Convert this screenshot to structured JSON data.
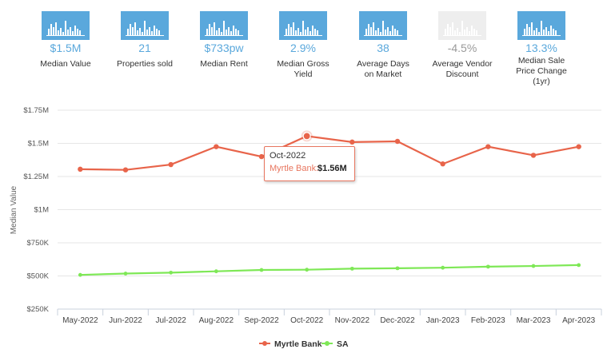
{
  "stats": [
    {
      "value": "$1.5M",
      "label": "Median Value",
      "dim": false
    },
    {
      "value": "21",
      "label": "Properties sold",
      "dim": false
    },
    {
      "value": "$733pw",
      "label": "Median Rent",
      "dim": false
    },
    {
      "value": "2.9%",
      "label": "Median Gross Yield",
      "dim": false
    },
    {
      "value": "38",
      "label": "Average Days on Market",
      "dim": false
    },
    {
      "value": "-4.5%",
      "label": "Average Vendor Discount",
      "dim": true
    },
    {
      "value": "13.3%",
      "label": "Median Sale Price Change (1yr)",
      "dim": false
    }
  ],
  "colors": {
    "accent": "#5aa8dc",
    "myrtle": "#e8644a",
    "sa": "#7ee856",
    "dim_icon": "#eeeeee",
    "dim_text": "#9a9a9a"
  },
  "chart_data": {
    "type": "line",
    "categories": [
      "May-2022",
      "Jun-2022",
      "Jul-2022",
      "Aug-2022",
      "Sep-2022",
      "Oct-2022",
      "Nov-2022",
      "Dec-2022",
      "Jan-2023",
      "Feb-2023",
      "Mar-2023",
      "Apr-2023"
    ],
    "series": [
      {
        "name": "Myrtle Bank",
        "values": [
          1305000,
          1300000,
          1340000,
          1475000,
          1400000,
          1555000,
          1510000,
          1515000,
          1345000,
          1475000,
          1410000,
          1475000
        ]
      },
      {
        "name": "SA",
        "values": [
          508000,
          518000,
          525000,
          535000,
          545000,
          547000,
          555000,
          558000,
          562000,
          570000,
          575000,
          582000
        ]
      }
    ],
    "ylabel": "Median Value",
    "ylim": [
      250000,
      1750000
    ],
    "y_ticks": [
      250000,
      500000,
      750000,
      1000000,
      1250000,
      1500000,
      1750000
    ],
    "y_tick_labels": [
      "$250K",
      "$500K",
      "$750K",
      "$1M",
      "$1.25M",
      "$1.5M",
      "$1.75M"
    ],
    "legend_position": "bottom-center",
    "tooltip": {
      "date": "Oct-2022",
      "series": "Myrtle Bank:",
      "value": "$1.56M",
      "category_index": 5
    }
  }
}
